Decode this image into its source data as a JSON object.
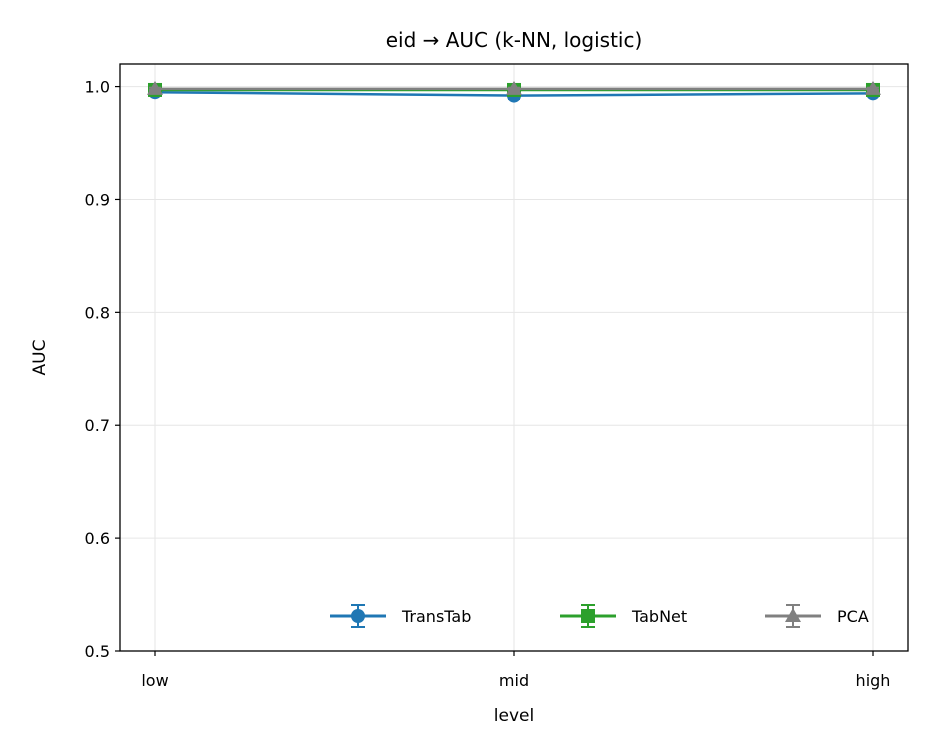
{
  "chart_data": {
    "type": "line",
    "title": "eid → AUC (k-NN, logistic)",
    "xlabel": "level",
    "ylabel": "AUC",
    "categories": [
      "low",
      "mid",
      "high"
    ],
    "ylim": [
      0.5,
      1.02
    ],
    "yticks": [
      0.5,
      0.6,
      0.7,
      0.8,
      0.9,
      1.0
    ],
    "ytick_labels": [
      "0.5",
      "0.6",
      "0.7",
      "0.8",
      "0.9",
      "1.0"
    ],
    "grid": true,
    "legend_position": "lower-right",
    "series": [
      {
        "name": "TransTab",
        "color": "#1f77b4",
        "marker": "circle",
        "values": [
          0.995,
          0.992,
          0.994
        ],
        "errors": [
          0.002,
          0.003,
          0.002
        ]
      },
      {
        "name": "TabNet",
        "color": "#2ca02c",
        "marker": "square",
        "values": [
          0.997,
          0.997,
          0.997
        ],
        "errors": [
          0.001,
          0.001,
          0.001
        ]
      },
      {
        "name": "PCA",
        "color": "#808080",
        "marker": "triangle",
        "values": [
          0.998,
          0.998,
          0.998
        ],
        "errors": [
          0.001,
          0.001,
          0.001
        ]
      }
    ]
  }
}
